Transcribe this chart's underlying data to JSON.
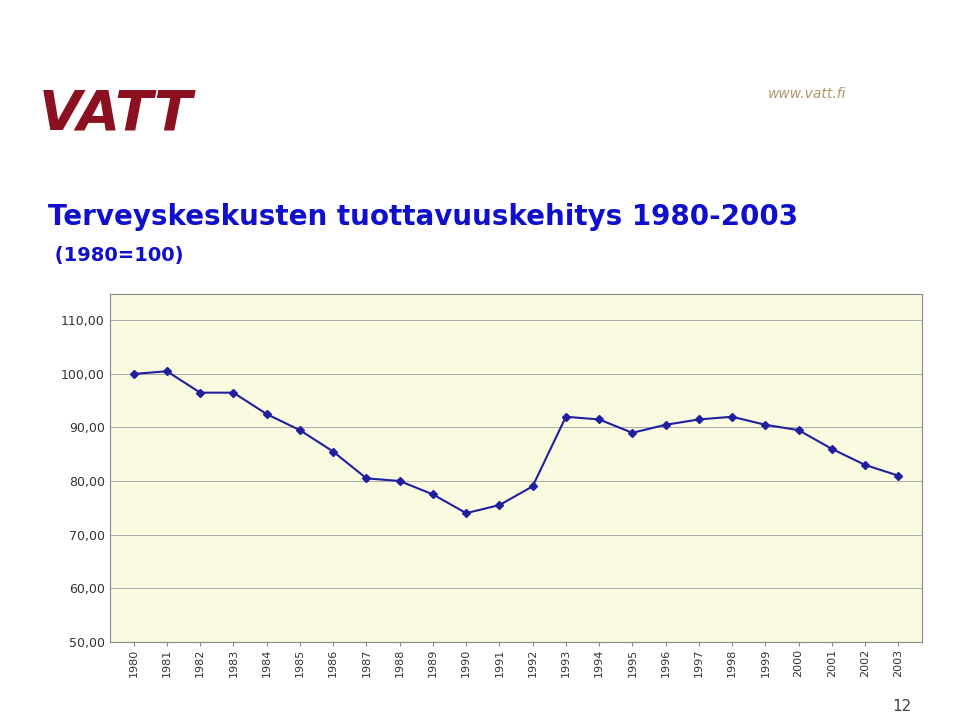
{
  "years": [
    1980,
    1981,
    1982,
    1983,
    1984,
    1985,
    1986,
    1987,
    1988,
    1989,
    1990,
    1991,
    1992,
    1993,
    1994,
    1995,
    1996,
    1997,
    1998,
    1999,
    2000,
    2001,
    2002,
    2003
  ],
  "values": [
    100.0,
    100.5,
    96.5,
    96.5,
    92.5,
    89.5,
    85.5,
    80.5,
    80.0,
    77.5,
    74.0,
    75.5,
    79.0,
    92.0,
    91.5,
    89.0,
    90.5,
    91.5,
    92.0,
    90.5,
    89.5,
    86.0,
    83.0,
    81.0
  ],
  "title_main": "Terveyskeskusten tuottavuuskehitys 1980-2003",
  "title_sub": " (1980=100)",
  "ylim": [
    50,
    115
  ],
  "yticks": [
    50,
    60,
    70,
    80,
    90,
    100,
    110
  ],
  "ytick_labels": [
    "50,00",
    "60,00",
    "70,00",
    "80,00",
    "90,00",
    "100,00",
    "110,00"
  ],
  "line_color": "#1F1FA0",
  "marker_color": "#1F1FA0",
  "plot_bg_color": "#FAFAE0",
  "fig_bg_color": "#FFFFFF",
  "grid_color": "#AAAAAA",
  "title_color": "#1010CC",
  "title_sub_color": "#1010CC",
  "watermark": "www.vatt.fi",
  "watermark_color": "#B0976A",
  "page_number": "12",
  "corner_color": "#8B1020"
}
